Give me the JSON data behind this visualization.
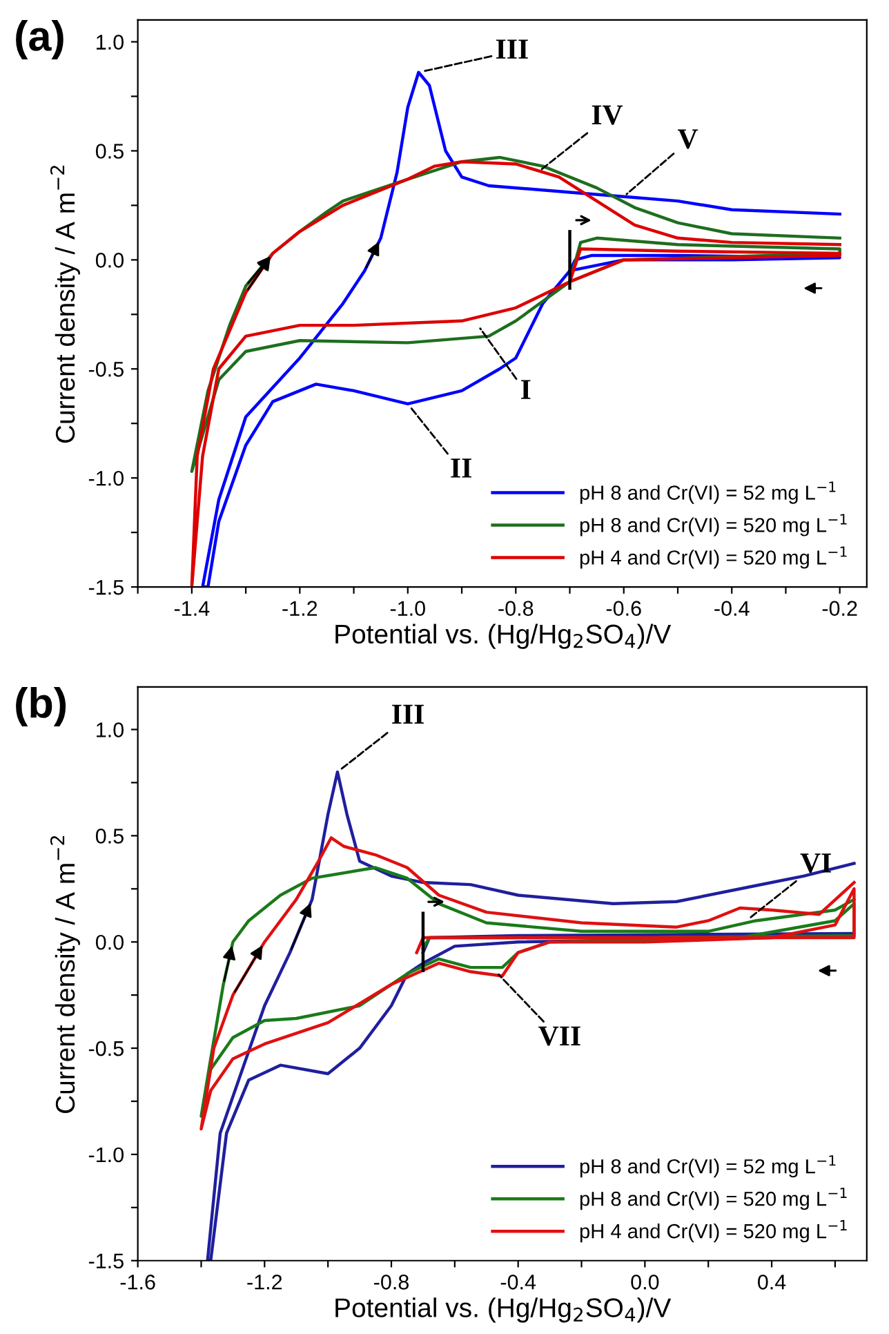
{
  "chart_data": [
    {
      "type": "line",
      "title": "(a)",
      "xlabel": "Potential vs. (Hg/Hg$_{2}$SO$_{4}$)/V",
      "ylabel": "Current density / A m$^{−2}$",
      "xlim": [
        -1.5,
        -0.15
      ],
      "ylim": [
        -1.5,
        1.1
      ],
      "xticks": [
        {
          "value": -1.5,
          "label": null
        },
        -1.4,
        {
          "value": -1.3,
          "label": null
        },
        -1.2,
        {
          "value": -1.1,
          "label": null
        },
        {
          "value": -1.0,
          "label": "-1.0"
        },
        {
          "value": -0.9,
          "label": null
        },
        -0.8,
        {
          "value": -0.7,
          "label": null
        },
        -0.6,
        {
          "value": -0.5,
          "label": null
        },
        -0.4,
        {
          "value": -0.3,
          "label": null
        },
        -0.2
      ],
      "yticks": [
        -1.5,
        {
          "value": -1.25,
          "label": null
        },
        {
          "value": -1.0,
          "label": "-1.0"
        },
        {
          "value": -0.75,
          "label": null
        },
        -0.5,
        {
          "value": -0.25,
          "label": null
        },
        {
          "value": 0.0,
          "label": "0.0"
        },
        {
          "value": 0.25,
          "label": null
        },
        0.5,
        {
          "value": 0.75,
          "label": null
        },
        {
          "value": 1.0,
          "label": "1.0"
        }
      ],
      "grid": false,
      "legend": "bottom right",
      "marker": "none",
      "line_style": "solid",
      "series": [
        {
          "name": "pH 8 and Cr(VI) = 52 mg L$^{−1}$",
          "color": "#0000ff",
          "x": [
            -0.7,
            -0.69,
            -0.66,
            -0.5,
            -0.2,
            -0.2,
            -0.4,
            -0.6,
            -0.7,
            -0.75,
            -0.8,
            -0.83,
            -0.9,
            -1.0,
            -1.1,
            -1.17,
            -1.25,
            -1.3,
            -1.35,
            -1.37,
            -1.38,
            -1.35,
            -1.3,
            -1.2,
            -1.12,
            -1.08,
            -1.05,
            -1.02,
            -1.0,
            -0.98,
            -0.96,
            -0.93,
            -0.9,
            -0.85,
            -0.7,
            -0.6,
            -0.5,
            -0.4,
            -0.2
          ],
          "values": [
            -0.05,
            0.0,
            0.02,
            0.02,
            0.01,
            0.01,
            0.0,
            0.0,
            -0.05,
            -0.2,
            -0.45,
            -0.5,
            -0.6,
            -0.66,
            -0.6,
            -0.57,
            -0.65,
            -0.85,
            -1.2,
            -1.5,
            -1.5,
            -1.1,
            -0.72,
            -0.45,
            -0.2,
            -0.05,
            0.1,
            0.4,
            0.7,
            0.86,
            0.8,
            0.5,
            0.38,
            0.34,
            0.31,
            0.29,
            0.27,
            0.23,
            0.21
          ]
        },
        {
          "name": "pH 8 and Cr(VI) = 520 mg L$^{−1}$",
          "color": "#1e6e1e",
          "x": [
            -0.7,
            -0.68,
            -0.65,
            -0.5,
            -0.2,
            -0.2,
            -0.6,
            -0.7,
            -0.8,
            -0.85,
            -1.0,
            -1.2,
            -1.3,
            -1.35,
            -1.4,
            -1.37,
            -1.33,
            -1.3,
            -1.25,
            -1.2,
            -1.15,
            -1.12,
            -1.0,
            -0.9,
            -0.83,
            -0.75,
            -0.65,
            -0.58,
            -0.5,
            -0.4,
            -0.2
          ],
          "values": [
            -0.1,
            0.08,
            0.1,
            0.07,
            0.05,
            0.03,
            0.0,
            -0.1,
            -0.28,
            -0.35,
            -0.38,
            -0.37,
            -0.42,
            -0.55,
            -0.97,
            -0.6,
            -0.3,
            -0.12,
            0.03,
            0.13,
            0.22,
            0.27,
            0.37,
            0.45,
            0.47,
            0.43,
            0.33,
            0.24,
            0.17,
            0.12,
            0.1
          ]
        },
        {
          "name": "pH 4 and Cr(VI) = 520 mg L$^{−1}$",
          "color": "#dd0000",
          "x": [
            -0.7,
            -0.68,
            -0.5,
            -0.2,
            -0.2,
            -0.6,
            -0.7,
            -0.8,
            -0.9,
            -1.1,
            -1.2,
            -1.3,
            -1.35,
            -1.38,
            -1.4,
            -1.39,
            -1.36,
            -1.3,
            -1.25,
            -1.2,
            -1.12,
            -1.0,
            -0.95,
            -0.9,
            -0.8,
            -0.72,
            -0.65,
            -0.58,
            -0.5,
            -0.4,
            -0.2
          ],
          "values": [
            -0.1,
            0.05,
            0.04,
            0.03,
            0.02,
            0.0,
            -0.1,
            -0.22,
            -0.28,
            -0.3,
            -0.3,
            -0.35,
            -0.5,
            -0.9,
            -1.5,
            -0.9,
            -0.5,
            -0.15,
            0.03,
            0.13,
            0.25,
            0.37,
            0.43,
            0.45,
            0.44,
            0.38,
            0.27,
            0.16,
            0.1,
            0.08,
            0.07
          ]
        }
      ],
      "annotations": [
        {
          "text": "I",
          "x": -0.87,
          "y": -0.3
        },
        {
          "text": "II",
          "x": -1.0,
          "y": -0.66
        },
        {
          "text": "III",
          "x": -0.98,
          "y": 0.86
        },
        {
          "text": "IV",
          "x": -0.76,
          "y": 0.4
        },
        {
          "text": "V",
          "x": -0.6,
          "y": 0.29
        }
      ]
    },
    {
      "type": "line",
      "title": "(b)",
      "xlabel": "Potential vs. (Hg/Hg$_{2}$SO$_{4}$)/V",
      "ylabel": "Current density / A m$^{−2}$",
      "xlim": [
        -1.6,
        0.7
      ],
      "ylim": [
        -1.5,
        1.2
      ],
      "xticks": [
        -1.6,
        {
          "value": -1.4,
          "label": null
        },
        -1.2,
        {
          "value": -1.0,
          "label": null
        },
        -0.8,
        {
          "value": -0.6,
          "label": null
        },
        -0.4,
        {
          "value": -0.2,
          "label": null
        },
        {
          "value": 0.0,
          "label": "0.0"
        },
        {
          "value": 0.2,
          "label": null
        },
        0.4,
        {
          "value": 0.6,
          "label": null
        }
      ],
      "yticks": [
        -1.5,
        {
          "value": -1.25,
          "label": null
        },
        {
          "value": -1.0,
          "label": "-1.0"
        },
        {
          "value": -0.75,
          "label": null
        },
        -0.5,
        {
          "value": -0.25,
          "label": null
        },
        {
          "value": 0.0,
          "label": "0.0"
        },
        {
          "value": 0.25,
          "label": null
        },
        0.5,
        {
          "value": 0.75,
          "label": null
        },
        {
          "value": 1.0,
          "label": "1.0"
        }
      ],
      "grid": false,
      "legend": "bottom right",
      "marker": "none",
      "line_style": "solid",
      "series": [
        {
          "name": "pH 8 and Cr(VI) = 52 mg L$^{−1}$",
          "color": "#1f1f9e",
          "x": [
            -0.7,
            -0.68,
            -0.4,
            0.66,
            0.66,
            0.4,
            -0.4,
            -0.6,
            -0.7,
            -0.75,
            -0.8,
            -0.9,
            -1.0,
            -1.15,
            -1.25,
            -1.32,
            -1.37,
            -1.38,
            -1.34,
            -1.27,
            -1.2,
            -1.12,
            -1.05,
            -1.0,
            -0.97,
            -0.94,
            -0.9,
            -0.8,
            -0.7,
            -0.55,
            -0.4,
            -0.1,
            0.1,
            0.3,
            0.5,
            0.66
          ],
          "values": [
            -0.05,
            0.02,
            0.03,
            0.04,
            0.04,
            0.02,
            0.0,
            -0.02,
            -0.1,
            -0.15,
            -0.3,
            -0.5,
            -0.62,
            -0.58,
            -0.65,
            -0.9,
            -1.5,
            -1.5,
            -0.9,
            -0.6,
            -0.3,
            -0.05,
            0.2,
            0.6,
            0.8,
            0.6,
            0.38,
            0.31,
            0.28,
            0.27,
            0.22,
            0.18,
            0.19,
            0.25,
            0.31,
            0.37
          ]
        },
        {
          "name": "pH 8 and Cr(VI) = 520 mg L$^{−1}$",
          "color": "#1a7a1a",
          "x": [
            -0.7,
            -0.68,
            0.0,
            0.66,
            0.66,
            0.6,
            0.3,
            -0.3,
            -0.4,
            -0.45,
            -0.55,
            -0.65,
            -0.75,
            -0.9,
            -1.1,
            -1.2,
            -1.3,
            -1.37,
            -1.4,
            -1.37,
            -1.33,
            -1.3,
            -1.25,
            -1.15,
            -1.05,
            -0.85,
            -0.75,
            -0.65,
            -0.5,
            -0.2,
            0.2,
            0.35,
            0.6,
            0.66
          ],
          "values": [
            -0.03,
            0.02,
            0.02,
            0.03,
            0.18,
            0.1,
            0.02,
            0.0,
            -0.05,
            -0.12,
            -0.12,
            -0.08,
            -0.15,
            -0.3,
            -0.36,
            -0.37,
            -0.45,
            -0.6,
            -0.82,
            -0.55,
            -0.2,
            0.0,
            0.1,
            0.22,
            0.3,
            0.35,
            0.3,
            0.18,
            0.09,
            0.05,
            0.05,
            0.1,
            0.15,
            0.2
          ]
        },
        {
          "name": "pH 4 and Cr(VI) = 520 mg L$^{−1}$",
          "color": "#e01010",
          "x": [
            -0.72,
            -0.7,
            0.0,
            0.66,
            0.66,
            0.6,
            0.4,
            0.0,
            -0.3,
            -0.4,
            -0.45,
            -0.55,
            -0.65,
            -0.8,
            -1.0,
            -1.2,
            -1.3,
            -1.37,
            -1.4,
            -1.36,
            -1.3,
            -1.2,
            -1.1,
            -1.03,
            -0.99,
            -0.95,
            -0.85,
            -0.75,
            -0.65,
            -0.5,
            -0.2,
            0.1,
            0.2,
            0.3,
            0.4,
            0.55,
            0.66
          ],
          "values": [
            -0.05,
            0.02,
            0.02,
            0.02,
            0.25,
            0.08,
            0.02,
            0.0,
            0.0,
            -0.05,
            -0.16,
            -0.14,
            -0.1,
            -0.2,
            -0.38,
            -0.48,
            -0.55,
            -0.7,
            -0.88,
            -0.5,
            -0.25,
            0.0,
            0.2,
            0.38,
            0.49,
            0.45,
            0.41,
            0.35,
            0.22,
            0.14,
            0.09,
            0.07,
            0.1,
            0.16,
            0.15,
            0.13,
            0.28
          ]
        }
      ],
      "annotations": [
        {
          "text": "III",
          "x": -0.97,
          "y": 0.8
        },
        {
          "text": "VI",
          "x": 0.32,
          "y": 0.1
        },
        {
          "text": "VII",
          "x": -0.47,
          "y": -0.14
        }
      ]
    }
  ]
}
